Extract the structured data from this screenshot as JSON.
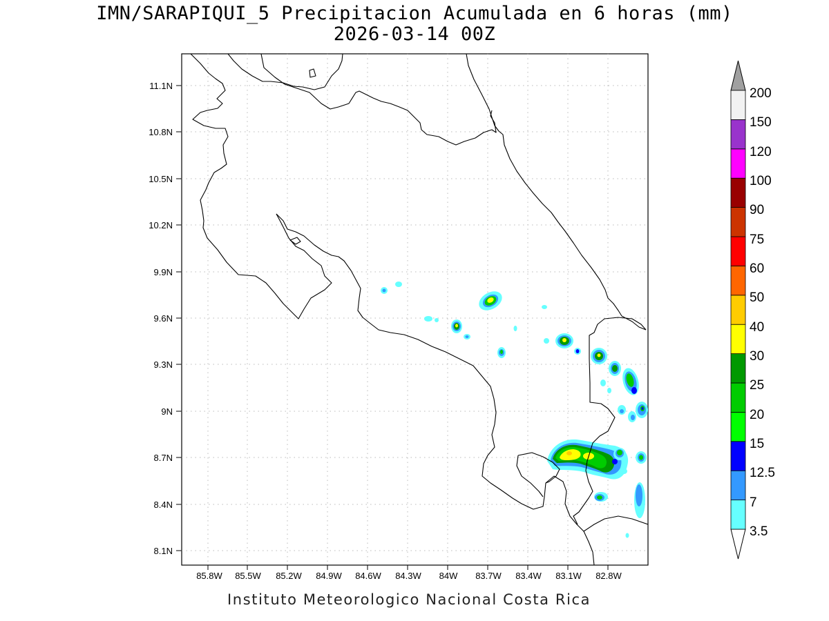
{
  "title": {
    "line1": "IMN/SARAPIQUI_5 Precipitacion Acumulada en 6 horas (mm)",
    "line2": "2026-03-14 00Z"
  },
  "footer": "Instituto Meteorologico Nacional Costa Rica",
  "map": {
    "lon_range": [
      -86.06,
      -82.46
    ],
    "lat_range": [
      8.0,
      11.3
    ],
    "lat_ticks": [
      "11.1N",
      "10.8N",
      "10.5N",
      "10.2N",
      "9.9N",
      "9.6N",
      "9.3N",
      "9N",
      "8.7N",
      "8.4N",
      "8.1N"
    ],
    "lon_ticks": [
      "85.8W",
      "85.5W",
      "85.2W",
      "84.9W",
      "84.6W",
      "84.3W",
      "84W",
      "83.7W",
      "83.4W",
      "83.1W",
      "82.8W"
    ],
    "grid": true
  },
  "colorbar": {
    "levels": [
      "3.5",
      "7",
      "12.5",
      "15",
      "20",
      "25",
      "30",
      "40",
      "50",
      "60",
      "75",
      "90",
      "100",
      "120",
      "150",
      "200"
    ],
    "colors": [
      "#66ffff",
      "#3399ff",
      "#0000ff",
      "#00ff00",
      "#00cc00",
      "#009900",
      "#ffff00",
      "#ffcc00",
      "#ff6600",
      "#ff0000",
      "#cc3300",
      "#990000",
      "#ff00ff",
      "#9933cc",
      "#f2f2f2",
      "#a0a0a0"
    ]
  }
}
